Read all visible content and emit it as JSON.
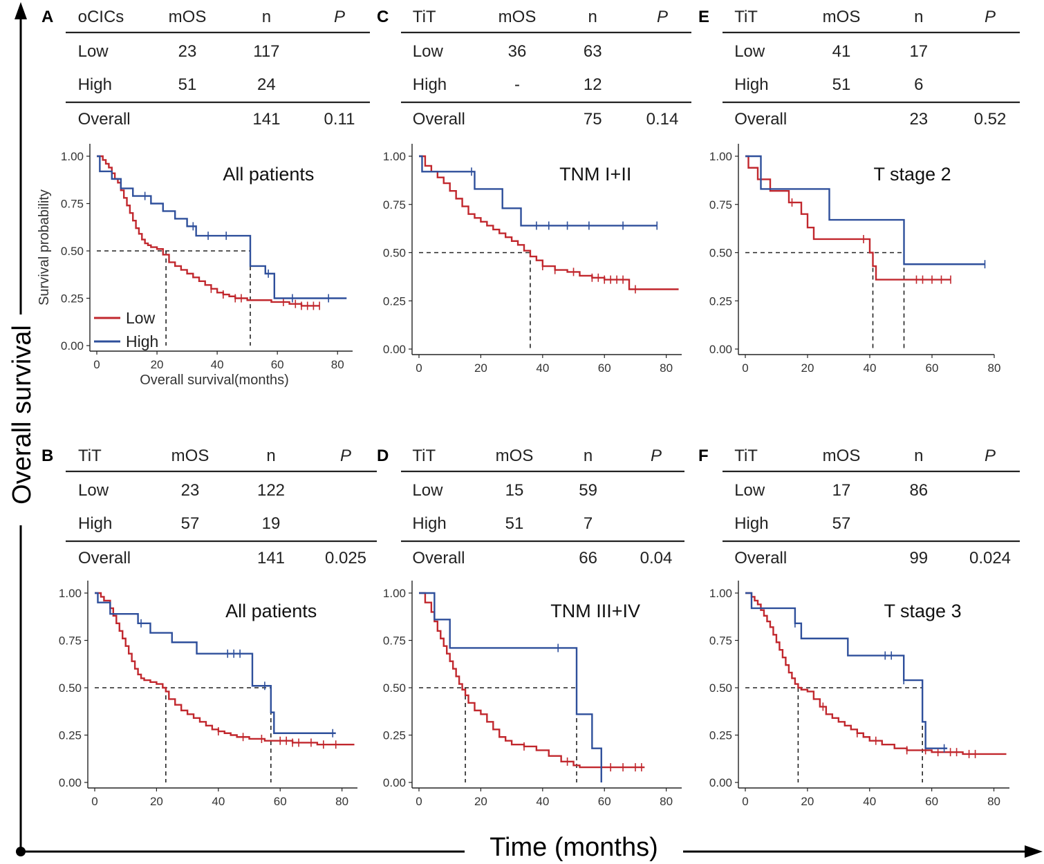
{
  "figure": {
    "y_label": "Overall survival",
    "x_label": "Time (months)"
  },
  "colors": {
    "low": "#c1272d",
    "high": "#2e4f9b",
    "significant": "#e3120b"
  },
  "chart_data": [
    {
      "letter": "A",
      "type": "line",
      "title": "All patients",
      "table": {
        "headers": [
          "oCICs",
          "mOS",
          "n",
          "P"
        ],
        "rows": [
          [
            "Low",
            "23",
            "117",
            ""
          ],
          [
            "High",
            "51",
            "24",
            ""
          ]
        ],
        "overall": [
          "Overall",
          "",
          "141",
          "0.11"
        ],
        "p_significant": false
      },
      "xlabel": "Overall survival(months)",
      "ylabel": "Survival probability",
      "xlim": [
        0,
        85
      ],
      "ylim": [
        0,
        1
      ],
      "xticks": [
        "0",
        "20",
        "40",
        "60",
        "80"
      ],
      "yticks": [
        "0.00",
        "0.25",
        "0.50",
        "0.75",
        "1.00"
      ],
      "legend": [
        "Low",
        "High"
      ],
      "median_low": 23,
      "median_high": 51,
      "series": [
        {
          "name": "Low",
          "x": [
            0,
            2,
            3,
            4,
            5,
            6,
            7,
            8,
            9,
            10,
            11,
            12,
            13,
            14,
            15,
            16,
            17,
            18,
            20,
            22,
            24,
            26,
            28,
            30,
            32,
            34,
            36,
            38,
            40,
            42,
            44,
            46,
            48,
            50,
            52,
            54,
            56,
            58,
            60,
            62,
            64,
            66,
            68,
            70,
            72,
            74
          ],
          "y": [
            1.0,
            0.98,
            0.96,
            0.94,
            0.91,
            0.88,
            0.86,
            0.82,
            0.78,
            0.74,
            0.7,
            0.66,
            0.62,
            0.59,
            0.56,
            0.54,
            0.53,
            0.52,
            0.51,
            0.48,
            0.44,
            0.42,
            0.4,
            0.38,
            0.36,
            0.34,
            0.32,
            0.3,
            0.28,
            0.27,
            0.26,
            0.25,
            0.25,
            0.24,
            0.24,
            0.24,
            0.24,
            0.23,
            0.23,
            0.23,
            0.22,
            0.22,
            0.21,
            0.21,
            0.21,
            0.21
          ],
          "censor": [
            38,
            42,
            46,
            48,
            62,
            66,
            68,
            70,
            72,
            74
          ]
        },
        {
          "name": "High",
          "x": [
            0,
            1,
            5,
            8,
            12,
            15,
            18,
            22,
            26,
            30,
            33,
            36,
            40,
            51,
            56,
            59,
            65,
            70,
            77,
            83
          ],
          "y": [
            1.0,
            0.92,
            0.88,
            0.83,
            0.79,
            0.79,
            0.75,
            0.71,
            0.67,
            0.63,
            0.58,
            0.58,
            0.58,
            0.42,
            0.38,
            0.25,
            0.25,
            0.25,
            0.25,
            0.25
          ],
          "censor": [
            16,
            32,
            37,
            43,
            57,
            65,
            77
          ]
        }
      ]
    },
    {
      "letter": "B",
      "type": "line",
      "title": "All patients",
      "table": {
        "headers": [
          "TiT",
          "mOS",
          "n",
          "P"
        ],
        "rows": [
          [
            "Low",
            "23",
            "122",
            ""
          ],
          [
            "High",
            "57",
            "19",
            ""
          ]
        ],
        "overall": [
          "Overall",
          "",
          "141",
          "0.025"
        ],
        "p_significant": true
      },
      "xlabel": "",
      "ylabel": "",
      "xlim": [
        0,
        85
      ],
      "ylim": [
        0,
        1
      ],
      "xticks": [
        "0",
        "20",
        "40",
        "60",
        "80"
      ],
      "yticks": [
        "0.00",
        "0.25",
        "0.50",
        "0.75",
        "1.00"
      ],
      "legend": [],
      "median_low": 23,
      "median_high": 57,
      "series": [
        {
          "name": "Low",
          "x": [
            0,
            2,
            3,
            5,
            6,
            7,
            8,
            9,
            10,
            11,
            12,
            13,
            14,
            15,
            16,
            18,
            20,
            22,
            23,
            24,
            26,
            28,
            30,
            32,
            34,
            36,
            38,
            40,
            42,
            44,
            46,
            48,
            50,
            52,
            55,
            58,
            60,
            64,
            68,
            72,
            76,
            80,
            84
          ],
          "y": [
            1.0,
            0.98,
            0.96,
            0.92,
            0.88,
            0.84,
            0.8,
            0.76,
            0.72,
            0.68,
            0.64,
            0.6,
            0.57,
            0.55,
            0.54,
            0.53,
            0.52,
            0.5,
            0.48,
            0.44,
            0.41,
            0.38,
            0.36,
            0.34,
            0.32,
            0.3,
            0.28,
            0.27,
            0.26,
            0.25,
            0.24,
            0.24,
            0.23,
            0.23,
            0.22,
            0.22,
            0.22,
            0.21,
            0.21,
            0.2,
            0.2,
            0.2,
            0.2
          ],
          "censor": [
            40,
            48,
            54,
            60,
            62,
            64,
            66,
            70,
            74,
            78
          ]
        },
        {
          "name": "High",
          "x": [
            0,
            1,
            5,
            14,
            18,
            25,
            33,
            40,
            51,
            57,
            58,
            60,
            70,
            78
          ],
          "y": [
            1.0,
            0.95,
            0.89,
            0.84,
            0.79,
            0.74,
            0.68,
            0.68,
            0.51,
            0.37,
            0.26,
            0.26,
            0.26,
            0.26
          ],
          "censor": [
            15,
            43,
            45,
            47,
            55,
            77
          ]
        }
      ]
    },
    {
      "letter": "C",
      "type": "line",
      "title": "TNM I+II",
      "table": {
        "headers": [
          "TiT",
          "mOS",
          "n",
          "P"
        ],
        "rows": [
          [
            "Low",
            "36",
            "63",
            ""
          ],
          [
            "High",
            "-",
            "12",
            ""
          ]
        ],
        "overall": [
          "Overall",
          "",
          "75",
          "0.14"
        ],
        "p_significant": false
      },
      "xlabel": "",
      "ylabel": "",
      "xlim": [
        0,
        85
      ],
      "ylim": [
        0,
        1
      ],
      "xticks": [
        "0",
        "20",
        "40",
        "60",
        "80"
      ],
      "yticks": [
        "0.00",
        "0.25",
        "0.50",
        "0.75",
        "1.00"
      ],
      "legend": [],
      "median_low": 36,
      "median_high": null,
      "series": [
        {
          "name": "Low",
          "x": [
            0,
            2,
            4,
            6,
            8,
            10,
            12,
            14,
            16,
            18,
            20,
            22,
            24,
            26,
            28,
            30,
            32,
            34,
            36,
            38,
            40,
            44,
            48,
            52,
            56,
            60,
            64,
            68,
            72,
            76,
            80,
            84
          ],
          "y": [
            1.0,
            0.95,
            0.92,
            0.89,
            0.86,
            0.82,
            0.78,
            0.74,
            0.7,
            0.68,
            0.66,
            0.64,
            0.62,
            0.6,
            0.58,
            0.56,
            0.54,
            0.51,
            0.48,
            0.46,
            0.43,
            0.41,
            0.4,
            0.38,
            0.37,
            0.36,
            0.36,
            0.31,
            0.31,
            0.31,
            0.31,
            0.31
          ],
          "censor": [
            40,
            44,
            50,
            56,
            58,
            60,
            62,
            64,
            66,
            70
          ]
        },
        {
          "name": "High",
          "x": [
            0,
            1,
            5,
            10,
            18,
            27,
            33,
            40,
            50,
            60,
            70,
            77
          ],
          "y": [
            1.0,
            0.92,
            0.92,
            0.92,
            0.83,
            0.73,
            0.64,
            0.64,
            0.64,
            0.64,
            0.64,
            0.64
          ],
          "censor": [
            17,
            38,
            42,
            48,
            55,
            66,
            77
          ]
        }
      ]
    },
    {
      "letter": "D",
      "type": "line",
      "title": "TNM III+IV",
      "table": {
        "headers": [
          "TiT",
          "mOS",
          "n",
          "P"
        ],
        "rows": [
          [
            "Low",
            "15",
            "59",
            ""
          ],
          [
            "High",
            "51",
            "7",
            ""
          ]
        ],
        "overall": [
          "Overall",
          "",
          "66",
          "0.04"
        ],
        "p_significant": true
      },
      "xlabel": "",
      "ylabel": "",
      "xlim": [
        0,
        85
      ],
      "ylim": [
        0,
        1
      ],
      "xticks": [
        "0",
        "20",
        "40",
        "60",
        "80"
      ],
      "yticks": [
        "0.00",
        "0.25",
        "0.50",
        "0.75",
        "1.00"
      ],
      "legend": [],
      "median_low": 15,
      "median_high": 51,
      "series": [
        {
          "name": "Low",
          "x": [
            0,
            2,
            4,
            5,
            6,
            7,
            8,
            9,
            10,
            11,
            12,
            13,
            14,
            15,
            16,
            18,
            20,
            22,
            24,
            26,
            28,
            30,
            34,
            38,
            42,
            46,
            50,
            52,
            60,
            70,
            73
          ],
          "y": [
            1.0,
            0.95,
            0.9,
            0.85,
            0.8,
            0.76,
            0.72,
            0.68,
            0.64,
            0.6,
            0.56,
            0.52,
            0.49,
            0.46,
            0.42,
            0.38,
            0.36,
            0.32,
            0.28,
            0.24,
            0.22,
            0.2,
            0.19,
            0.17,
            0.14,
            0.11,
            0.09,
            0.08,
            0.08,
            0.08,
            0.08
          ],
          "censor": [
            34,
            48,
            62,
            66,
            70,
            72
          ]
        },
        {
          "name": "High",
          "x": [
            0,
            5,
            10,
            20,
            30,
            40,
            51,
            56,
            59
          ],
          "y": [
            1.0,
            0.86,
            0.71,
            0.71,
            0.71,
            0.71,
            0.36,
            0.18,
            0.0
          ],
          "censor": [
            45
          ]
        }
      ]
    },
    {
      "letter": "E",
      "type": "line",
      "title": "T stage 2",
      "table": {
        "headers": [
          "TiT",
          "mOS",
          "n",
          "P"
        ],
        "rows": [
          [
            "Low",
            "41",
            "17",
            ""
          ],
          [
            "High",
            "51",
            "6",
            ""
          ]
        ],
        "overall": [
          "Overall",
          "",
          "23",
          "0.52"
        ],
        "p_significant": false
      },
      "xlabel": "",
      "ylabel": "",
      "xlim": [
        0,
        80
      ],
      "ylim": [
        0,
        1
      ],
      "xticks": [
        "0",
        "20",
        "40",
        "60",
        "80"
      ],
      "yticks": [
        "0.00",
        "0.25",
        "0.50",
        "0.75",
        "1.00"
      ],
      "legend": [],
      "median_low": 41,
      "median_high": 51,
      "series": [
        {
          "name": "Low",
          "x": [
            0,
            1,
            4,
            8,
            14,
            18,
            20,
            22,
            24,
            30,
            40,
            41,
            42,
            50,
            55,
            60,
            66
          ],
          "y": [
            1.0,
            0.94,
            0.88,
            0.82,
            0.76,
            0.7,
            0.63,
            0.57,
            0.57,
            0.57,
            0.5,
            0.43,
            0.36,
            0.36,
            0.36,
            0.36,
            0.36
          ],
          "censor": [
            15,
            38,
            55,
            57,
            60,
            63,
            66
          ]
        },
        {
          "name": "High",
          "x": [
            0,
            5,
            10,
            27,
            40,
            51,
            60,
            70,
            77
          ],
          "y": [
            1.0,
            0.83,
            0.83,
            0.67,
            0.67,
            0.44,
            0.44,
            0.44,
            0.44
          ],
          "censor": [
            77
          ]
        }
      ]
    },
    {
      "letter": "F",
      "type": "line",
      "title": "T stage 3",
      "table": {
        "headers": [
          "TiT",
          "mOS",
          "n",
          "P"
        ],
        "rows": [
          [
            "Low",
            "17",
            "86",
            ""
          ],
          [
            "High",
            "57",
            "",
            ""
          ]
        ],
        "overall": [
          "Overall",
          "",
          "99",
          "0.024"
        ],
        "p_significant": true
      },
      "xlabel": "",
      "ylabel": "",
      "xlim": [
        0,
        85
      ],
      "ylim": [
        0,
        1
      ],
      "xticks": [
        "0",
        "20",
        "40",
        "60",
        "80"
      ],
      "yticks": [
        "0.00",
        "0.25",
        "0.50",
        "0.75",
        "1.00"
      ],
      "legend": [],
      "median_low": 17,
      "median_high": 57,
      "series": [
        {
          "name": "Low",
          "x": [
            0,
            2,
            3,
            4,
            5,
            6,
            7,
            8,
            9,
            10,
            11,
            12,
            13,
            14,
            15,
            16,
            17,
            18,
            20,
            22,
            24,
            26,
            28,
            30,
            32,
            34,
            36,
            38,
            40,
            44,
            48,
            52,
            56,
            60,
            64,
            70,
            76,
            80,
            84
          ],
          "y": [
            1.0,
            0.98,
            0.96,
            0.94,
            0.91,
            0.88,
            0.85,
            0.82,
            0.78,
            0.74,
            0.7,
            0.66,
            0.62,
            0.58,
            0.55,
            0.52,
            0.5,
            0.49,
            0.48,
            0.44,
            0.4,
            0.36,
            0.34,
            0.32,
            0.3,
            0.28,
            0.26,
            0.24,
            0.22,
            0.2,
            0.18,
            0.17,
            0.17,
            0.16,
            0.16,
            0.15,
            0.15,
            0.15,
            0.15
          ],
          "censor": [
            25,
            36,
            42,
            52,
            58,
            62,
            66,
            68,
            72,
            74
          ]
        },
        {
          "name": "High",
          "x": [
            0,
            2,
            16,
            18,
            33,
            40,
            51,
            56,
            57,
            58,
            60,
            65
          ],
          "y": [
            1.0,
            0.92,
            0.84,
            0.76,
            0.67,
            0.67,
            0.54,
            0.54,
            0.32,
            0.18,
            0.18,
            0.18
          ],
          "censor": [
            16,
            45,
            47,
            51,
            64
          ]
        }
      ]
    }
  ]
}
